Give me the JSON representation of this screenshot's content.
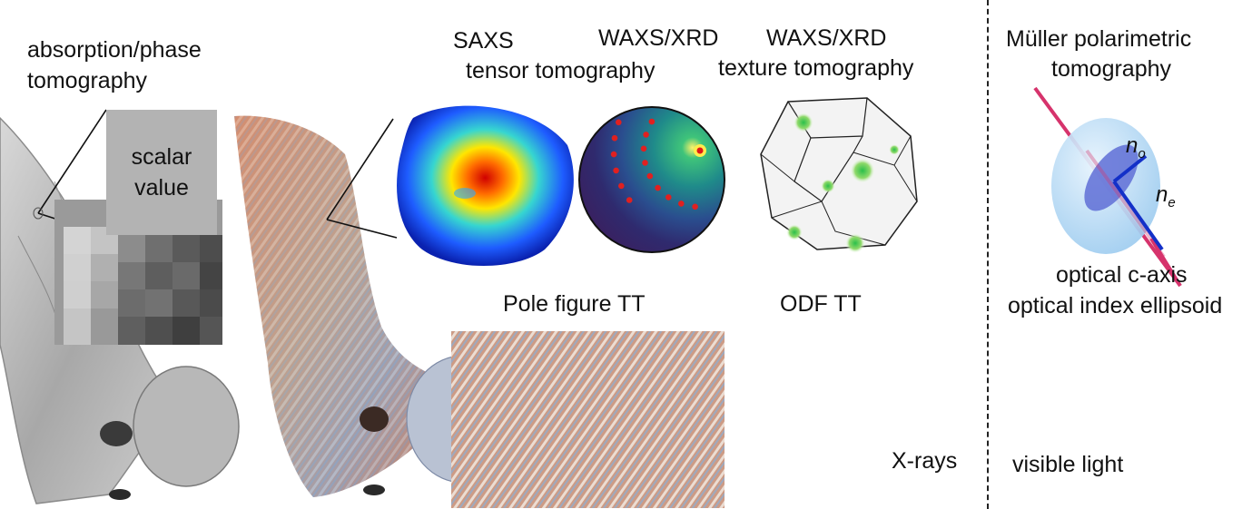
{
  "labels": {
    "absorption_phase_line1": "absorption/phase",
    "absorption_phase_line2": "tomography",
    "scalar_line1": "scalar",
    "scalar_line2": "value",
    "saxs": "SAXS",
    "waxs_xrd_1": "WAXS/XRD",
    "tensor_tomography": "tensor tomography",
    "waxs_xrd_2": "WAXS/XRD",
    "texture_tomography": "texture tomography",
    "pole_figure_tt": "Pole figure TT",
    "odf_tt": "ODF TT",
    "muller_line1": "Müller polarimetric",
    "muller_line2": "tomography",
    "n_o_main": "n",
    "n_o_sub": "o",
    "n_e_main": "n",
    "n_e_sub": "e",
    "optical_c_axis": "optical c-axis",
    "optical_index_ellipsoid": "optical index ellipsoid",
    "x_rays": "X-rays",
    "visible_light": "visible light"
  },
  "colors": {
    "c_axis": "#d6336c",
    "ellipsoid": "#a9d3f2",
    "n_vectors": "#1330c8",
    "scalar_box": "#b3b3b3",
    "bone_gray": "#bdbdbd",
    "bone_color": "#c98a6a",
    "pole_figure_bg": "#2b3a7a",
    "pole_points": "#e02020"
  }
}
